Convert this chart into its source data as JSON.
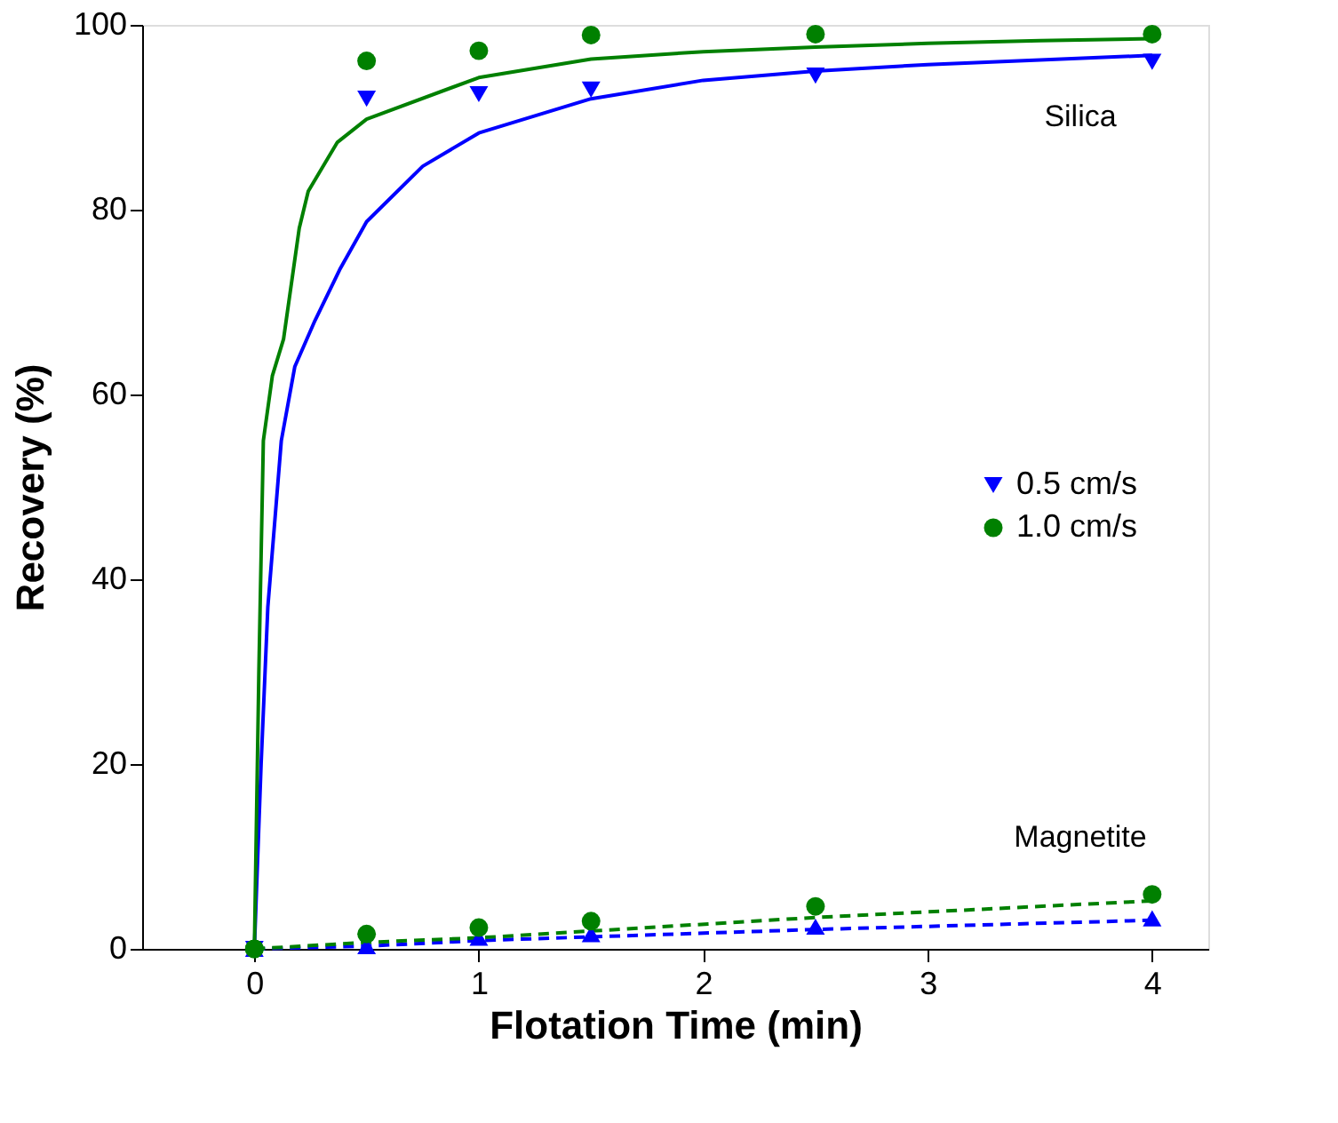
{
  "chart_data": {
    "type": "scatter",
    "xlabel": "Flotation Time (min)",
    "ylabel": "Recovery (%)",
    "xlim": [
      -0.5,
      4.25
    ],
    "xticks": [
      0,
      1,
      2,
      3,
      4
    ],
    "ylim": [
      0,
      100
    ],
    "yticks": [
      0,
      20,
      40,
      60,
      80,
      100
    ],
    "grid": false,
    "legend": "right",
    "annotations": [
      "Silica",
      "Magnetite"
    ],
    "series": [
      {
        "name": "0.5 cm/s",
        "color": "#0000ff",
        "marker": "triangle-down",
        "x": [
          0,
          0.5,
          1,
          1.5,
          2.5,
          4
        ],
        "values": [
          0,
          92,
          92.5,
          93,
          94.5,
          96
        ]
      },
      {
        "name": "1.0 cm/s",
        "color": "#008000",
        "marker": "circle",
        "x": [
          0,
          0.5,
          1,
          1.5,
          2.5,
          4
        ],
        "values": [
          0,
          96.1,
          97.2,
          98.9,
          99,
          99
        ]
      },
      {
        "color": "#0000ff",
        "marker": "triangle",
        "x": [
          0,
          0.5,
          1,
          1.5,
          2.5,
          4
        ],
        "values": [
          0,
          0.3,
          1.2,
          1.6,
          2.4,
          3.3
        ]
      },
      {
        "color": "#008000",
        "marker": "circle",
        "x": [
          0,
          0.5,
          1,
          1.5,
          2.5,
          4
        ],
        "values": [
          0,
          1.6,
          2.3,
          3.0,
          4.6,
          5.9
        ]
      },
      {
        "type": "line",
        "line_style": "solid",
        "marker": "none",
        "color": "#0000ff",
        "x": [
          0,
          0.03,
          0.06,
          0.12,
          0.18,
          0.27,
          0.38,
          0.5,
          0.75,
          1,
          1.5,
          2,
          2.5,
          3,
          3.5,
          4
        ],
        "values": [
          0,
          20,
          37,
          55,
          63,
          68,
          73.5,
          78.7,
          84.7,
          88.3,
          92,
          94,
          95,
          95.7,
          96.2,
          96.7
        ]
      },
      {
        "type": "line",
        "line_style": "solid",
        "marker": "none",
        "color": "#008000",
        "x": [
          0,
          0.02,
          0.04,
          0.08,
          0.13,
          0.2,
          0.24,
          0.37,
          0.5,
          1,
          1.5,
          2,
          2.5,
          3,
          3.5,
          4
        ],
        "values": [
          0,
          30,
          55,
          62,
          66,
          78,
          82,
          87.3,
          89.8,
          94.3,
          96.3,
          97.1,
          97.6,
          98,
          98.3,
          98.5
        ]
      },
      {
        "type": "line",
        "line_style": "dashed",
        "marker": "none",
        "color": "#0000ff",
        "x": [
          0,
          0.5,
          1,
          2.5,
          4
        ],
        "values": [
          0,
          0.3,
          0.9,
          2.1,
          3.1
        ]
      },
      {
        "type": "line",
        "line_style": "dashed",
        "marker": "none",
        "color": "#008000",
        "x": [
          0,
          0.5,
          1,
          2.5,
          4
        ],
        "values": [
          0,
          0.7,
          1.2,
          3.4,
          5.2
        ]
      }
    ]
  }
}
